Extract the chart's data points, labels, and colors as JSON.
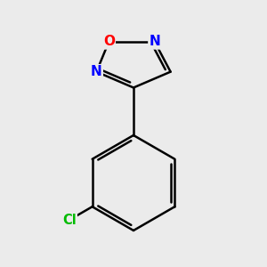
{
  "background_color": "#ebebeb",
  "bond_color": "#000000",
  "atom_colors": {
    "O": "#ff0000",
    "N": "#0000ff",
    "Cl": "#00bb00",
    "C": "#000000"
  },
  "bond_width": 1.8,
  "fig_size": [
    3.0,
    3.0
  ],
  "dpi": 100
}
